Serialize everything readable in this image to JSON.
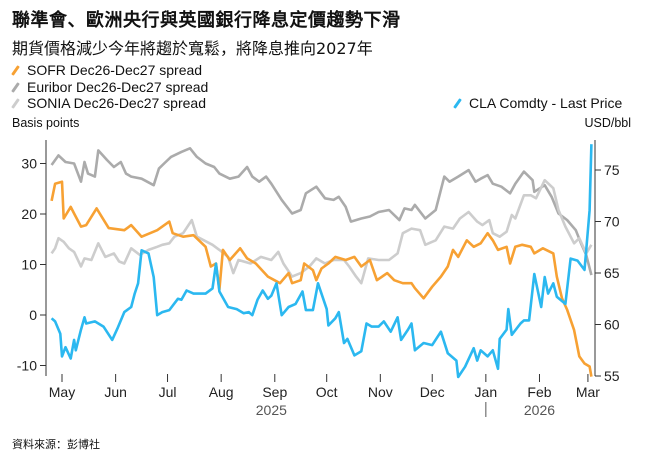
{
  "title": "聯準會、歐洲央行與英國銀行降息定價趨勢下滑",
  "subtitle": "期貨價格減少今年將趨於寬鬆，將降息推向2027年",
  "source": "資料來源：彭博社",
  "colors": {
    "sofr": "#f7a133",
    "euribor": "#ababab",
    "sonia": "#cdcdcd",
    "cla": "#2bb8f0"
  },
  "chart_data": {
    "type": "line",
    "title": "聯準會、歐洲央行與英國銀行降息定價趨勢下滑",
    "x_unit": "days since 2025-05-01",
    "xlim": [
      -9,
      308
    ],
    "ylabel_left": "Basis points",
    "ylabel_right": "USD/bbl",
    "ylim_left": [
      -12,
      34
    ],
    "ylim_right": [
      55,
      78
    ],
    "yticks_left": [
      30,
      20,
      10,
      0,
      -10
    ],
    "yticks_right": [
      75,
      70,
      65,
      60,
      55
    ],
    "xticks": [
      {
        "label": "May",
        "day": 0
      },
      {
        "label": "Jun",
        "day": 31
      },
      {
        "label": "Jul",
        "day": 61
      },
      {
        "label": "Aug",
        "day": 92
      },
      {
        "label": "Sep",
        "day": 123
      },
      {
        "label": "Oct",
        "day": 153
      },
      {
        "label": "Nov",
        "day": 184
      },
      {
        "label": "Dec",
        "day": 214
      },
      {
        "label": "Jan",
        "day": 245
      },
      {
        "label": "Feb",
        "day": 276
      },
      {
        "label": "Mar",
        "day": 304
      }
    ],
    "year_labels": [
      {
        "label": "2025",
        "day": 121
      },
      {
        "label": "2026",
        "day": 276
      }
    ],
    "series": [
      {
        "name": "SOFR Dec26-Dec27 spread",
        "key": "sofr",
        "axis": "left",
        "x": [
          -6,
          -4,
          0,
          1,
          5,
          7,
          11,
          14,
          20,
          27,
          36,
          40,
          46,
          55,
          62,
          64,
          70,
          76,
          83,
          86,
          89,
          91,
          93,
          97,
          103,
          107,
          112,
          119,
          126,
          131,
          133,
          138,
          140,
          145,
          147,
          150,
          154,
          158,
          164,
          169,
          173,
          178,
          182,
          188,
          192,
          197,
          202,
          204,
          209,
          214,
          219,
          223,
          226,
          229,
          234,
          238,
          242,
          246,
          249,
          252,
          257,
          259,
          262,
          266,
          271,
          273,
          278,
          284,
          286,
          289,
          292,
          296,
          299,
          302,
          305,
          306
        ],
        "y": [
          22.6,
          26.0,
          26.4,
          19.1,
          21.4,
          20.1,
          17.5,
          17.8,
          21.1,
          17.2,
          16.8,
          17.8,
          15.5,
          16.8,
          18.5,
          16.2,
          15.5,
          15.8,
          13.5,
          9.6,
          10.2,
          5.0,
          12.9,
          10.9,
          13.2,
          11.2,
          10.2,
          7.6,
          6.3,
          8.3,
          6.3,
          6.9,
          10.2,
          8.9,
          6.9,
          9.2,
          10.2,
          11.5,
          10.9,
          11.5,
          9.6,
          10.9,
          6.9,
          8.3,
          6.9,
          6.3,
          6.3,
          5.3,
          3.3,
          5.6,
          7.6,
          9.6,
          12.9,
          11.5,
          14.8,
          13.5,
          14.2,
          16.2,
          14.8,
          12.9,
          13.5,
          10.2,
          13.5,
          13.9,
          13.5,
          12.2,
          13.2,
          12.2,
          7.6,
          3.3,
          1.0,
          -3.0,
          -8.2,
          -9.6,
          -10.2,
          -12.2
        ]
      },
      {
        "name": "Euribor Dec26-Dec27 spread",
        "key": "euribor",
        "axis": "left",
        "x": [
          -6,
          -2,
          2,
          7,
          11,
          13,
          15,
          19,
          21,
          26,
          30,
          34,
          37,
          40,
          46,
          53,
          56,
          59,
          63,
          69,
          74,
          78,
          83,
          88,
          91,
          97,
          102,
          107,
          110,
          114,
          118,
          121,
          127,
          133,
          138,
          141,
          147,
          152,
          157,
          160,
          164,
          167,
          173,
          178,
          183,
          189,
          195,
          198,
          202,
          204,
          210,
          216,
          221,
          224,
          229,
          235,
          239,
          242,
          246,
          249,
          254,
          259,
          262,
          267,
          272,
          273,
          279,
          283,
          287,
          292,
          297,
          300,
          303,
          306
        ],
        "y": [
          29.7,
          31.6,
          30.3,
          30.0,
          26.4,
          30.3,
          28.0,
          27.4,
          32.6,
          30.7,
          29.3,
          30.3,
          28.0,
          27.4,
          27.0,
          25.7,
          29.0,
          30.0,
          31.3,
          32.3,
          33.0,
          31.3,
          30.0,
          29.3,
          28.0,
          27.0,
          27.4,
          29.3,
          27.4,
          26.4,
          27.4,
          26.0,
          22.8,
          20.1,
          20.8,
          24.1,
          25.4,
          23.1,
          22.8,
          23.4,
          21.4,
          18.5,
          19.1,
          19.5,
          20.4,
          20.8,
          18.8,
          21.1,
          20.8,
          21.8,
          19.1,
          20.8,
          27.4,
          26.4,
          27.4,
          28.7,
          26.4,
          27.0,
          27.7,
          26.0,
          25.4,
          24.1,
          26.0,
          28.4,
          26.7,
          24.4,
          25.7,
          23.4,
          20.1,
          18.8,
          16.8,
          14.2,
          11.9,
          7.9
        ]
      },
      {
        "name": "SONIA Dec26-Dec27 spread",
        "key": "sonia",
        "axis": "left",
        "x": [
          -6,
          -4,
          -2,
          1,
          4,
          7,
          11,
          13,
          17,
          21,
          25,
          30,
          33,
          36,
          40,
          45,
          50,
          55,
          58,
          62,
          65,
          70,
          75,
          78,
          82,
          87,
          91,
          96,
          99,
          102,
          109,
          115,
          121,
          125,
          128,
          133,
          138,
          143,
          147,
          152,
          157,
          163,
          166,
          170,
          173,
          177,
          183,
          189,
          194,
          197,
          202,
          207,
          210,
          216,
          221,
          226,
          230,
          235,
          240,
          243,
          247,
          249,
          253,
          257,
          260,
          262,
          267,
          271,
          274,
          279,
          284,
          287,
          291,
          296,
          299,
          303,
          306
        ],
        "y": [
          12.2,
          13.2,
          15.2,
          14.5,
          13.2,
          12.5,
          9.6,
          11.2,
          10.9,
          14.2,
          11.5,
          12.2,
          10.6,
          10.2,
          13.2,
          11.9,
          12.9,
          13.5,
          13.9,
          14.2,
          15.5,
          16.2,
          18.8,
          15.5,
          14.8,
          13.9,
          12.9,
          11.5,
          8.3,
          10.9,
          10.2,
          11.5,
          10.9,
          12.5,
          10.2,
          7.6,
          8.3,
          9.6,
          11.2,
          10.2,
          10.9,
          10.9,
          9.6,
          7.6,
          6.3,
          11.2,
          10.9,
          10.9,
          12.2,
          16.2,
          17.1,
          16.8,
          13.9,
          14.8,
          17.5,
          17.1,
          19.1,
          20.4,
          18.5,
          17.8,
          18.8,
          16.2,
          15.5,
          16.5,
          19.8,
          19.1,
          23.7,
          23.7,
          23.1,
          26.7,
          25.1,
          20.8,
          17.5,
          14.2,
          15.2,
          12.2,
          13.9
        ]
      },
      {
        "name": "CLA Comdty - Last Price",
        "key": "cla",
        "axis": "right",
        "x": [
          -6,
          -4,
          -1,
          0,
          2,
          5,
          7,
          8,
          11,
          13,
          14,
          19,
          24,
          29,
          32,
          36,
          40,
          42,
          44,
          46,
          50,
          53,
          55,
          58,
          62,
          67,
          69,
          72,
          76,
          78,
          83,
          87,
          89,
          91,
          96,
          101,
          105,
          108,
          110,
          113,
          116,
          119,
          121,
          124,
          127,
          131,
          135,
          139,
          141,
          145,
          148,
          153,
          154,
          158,
          160,
          163,
          165,
          169,
          173,
          176,
          179,
          183,
          186,
          190,
          194,
          196,
          200,
          202,
          204,
          209,
          214,
          219,
          223,
          228,
          229,
          233,
          238,
          240,
          242,
          246,
          249,
          252,
          253,
          257,
          258,
          260,
          265,
          267,
          270,
          273,
          277,
          279,
          281,
          284,
          286,
          291,
          294,
          298,
          302,
          303,
          305,
          306
        ],
        "y": [
          60.6,
          60.3,
          59.1,
          56.9,
          57.8,
          56.7,
          58.5,
          57.5,
          59.5,
          60.7,
          60.1,
          60.3,
          59.8,
          58.5,
          59.6,
          61.2,
          61.7,
          63.0,
          64.0,
          67.2,
          66.9,
          64.6,
          60.9,
          61.2,
          61.4,
          62.5,
          62.4,
          63.3,
          63.0,
          63.0,
          63.0,
          63.5,
          65.9,
          63.2,
          61.7,
          61.5,
          61.1,
          61.2,
          60.9,
          62.4,
          63.3,
          62.5,
          62.8,
          64.0,
          60.9,
          61.7,
          62.0,
          63.2,
          61.4,
          61.4,
          64.0,
          61.5,
          59.9,
          60.6,
          61.2,
          58.2,
          58.6,
          57.0,
          57.4,
          60.1,
          59.8,
          59.8,
          60.3,
          59.3,
          60.7,
          58.5,
          59.5,
          60.1,
          57.5,
          58.2,
          58.0,
          59.3,
          57.2,
          56.5,
          54.9,
          55.9,
          57.7,
          56.5,
          57.5,
          56.9,
          57.5,
          55.7,
          58.6,
          59.5,
          61.5,
          59.0,
          60.1,
          60.4,
          60.4,
          64.9,
          61.7,
          64.6,
          63.0,
          64.0,
          62.7,
          62.0,
          66.4,
          66.2,
          65.3,
          67.2,
          71.1,
          77.5
        ]
      }
    ],
    "legend": [
      {
        "label": "SOFR Dec26-Dec27 spread",
        "key": "sofr"
      },
      {
        "label": "Euribor Dec26-Dec27 spread",
        "key": "euribor"
      },
      {
        "label": "SONIA Dec26-Dec27 spread",
        "key": "sonia"
      },
      {
        "label": "CLA Comdty - Last Price",
        "key": "cla"
      }
    ],
    "legend_placement": "top"
  }
}
